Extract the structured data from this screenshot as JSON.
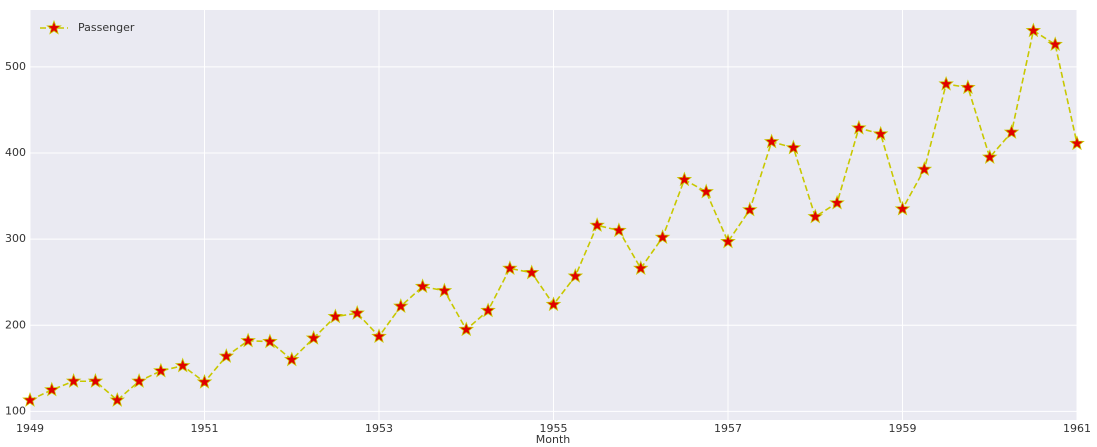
{
  "chart_data": {
    "type": "line",
    "xlabel": "Month",
    "x": [
      1949,
      1949.25,
      1949.5,
      1949.75,
      1950,
      1950.25,
      1950.5,
      1950.75,
      1951,
      1951.25,
      1951.5,
      1951.75,
      1952,
      1952.25,
      1952.5,
      1952.75,
      1953,
      1953.25,
      1953.5,
      1953.75,
      1954,
      1954.25,
      1954.5,
      1954.75,
      1955,
      1955.25,
      1955.5,
      1955.75,
      1956,
      1956.25,
      1956.5,
      1956.75,
      1957,
      1957.25,
      1957.5,
      1957.75,
      1958,
      1958.25,
      1958.5,
      1958.75,
      1959,
      1959.25,
      1959.5,
      1959.75,
      1960,
      1960.25,
      1960.5,
      1960.75,
      1961
    ],
    "series": [
      {
        "name": "Passenger",
        "color": "#c8c800",
        "marker_color": "#e00000",
        "values": [
          113,
          125,
          135,
          135,
          113,
          135,
          147,
          153,
          134,
          164,
          182,
          181,
          160,
          185,
          210,
          214,
          187,
          222,
          245,
          240,
          195,
          217,
          266,
          261,
          224,
          257,
          316,
          310,
          266,
          302,
          369,
          355,
          297,
          334,
          413,
          406,
          326,
          342,
          429,
          422,
          335,
          381,
          480,
          476,
          395,
          424,
          542,
          526,
          411
        ]
      }
    ],
    "xlim": [
      1949,
      1961
    ],
    "xticks": [
      1949,
      1951,
      1953,
      1955,
      1957,
      1959,
      1961
    ],
    "ylim": [
      90,
      566
    ],
    "yticks": [
      100,
      200,
      300,
      400,
      500
    ],
    "grid": true,
    "legend": "upper-left"
  }
}
